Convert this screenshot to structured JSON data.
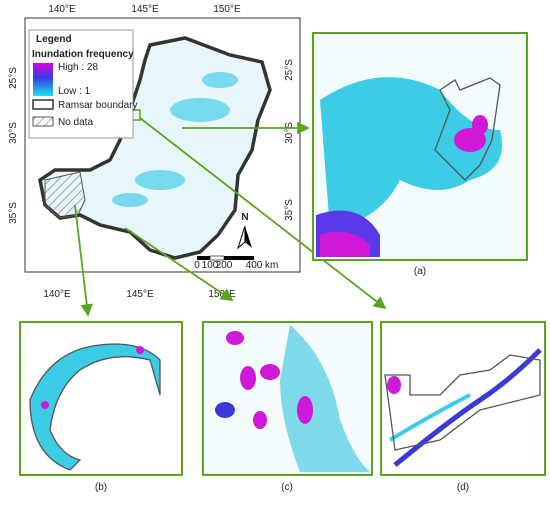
{
  "map": {
    "top_labels": [
      "140°E",
      "145°E",
      "150°E"
    ],
    "bottom_labels": [
      "140°E",
      "145°E",
      "150°E"
    ],
    "left_labels": [
      "25°S",
      "30°S",
      "35°S"
    ],
    "right_labels": [
      "25°S",
      "30°S",
      "35°S"
    ],
    "legend": {
      "title": "Legend",
      "heading": "Inundation frequency",
      "high": "High : 28",
      "low": "Low : 1",
      "ramsar": "Ramsar boundary",
      "no_data": "No data"
    },
    "north": "N",
    "scale": {
      "labels": [
        "0",
        "100",
        "200",
        "400"
      ],
      "unit": "km"
    }
  },
  "panels": [
    {
      "label": "(a)"
    },
    {
      "label": "(b)"
    },
    {
      "label": "(c)"
    },
    {
      "label": "(d)"
    }
  ]
}
